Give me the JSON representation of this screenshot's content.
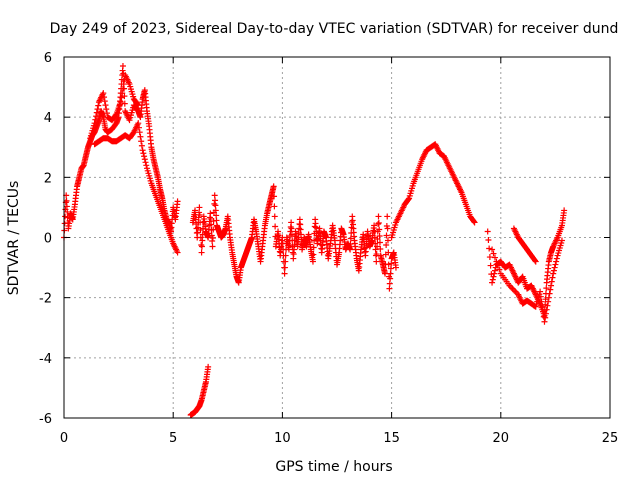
{
  "chart_data": {
    "type": "scatter",
    "title": "Day 249 of 2023, Sidereal Day-to-day VTEC variation (SDTVAR) for receiver dund",
    "xlabel": "GPS time / hours",
    "ylabel": "SDTVAR / TECUs",
    "xlim": [
      0,
      25
    ],
    "ylim": [
      -6,
      6
    ],
    "xticks": [
      0,
      5,
      10,
      15,
      20,
      25
    ],
    "yticks": [
      -6,
      -4,
      -2,
      0,
      2,
      4,
      6
    ],
    "xtick_labels": [
      "0",
      "5",
      "10",
      "15",
      "20",
      "25"
    ],
    "ytick_labels": [
      "-6",
      "-4",
      "-2",
      "0",
      "2",
      "4",
      "6"
    ],
    "grid": true,
    "marker": "+",
    "color": "#ff0000",
    "series": [
      {
        "name": "main",
        "x": [
          0.0,
          0.1,
          0.2,
          0.3,
          0.4,
          0.5,
          0.6,
          0.7,
          0.8,
          0.9,
          1.0,
          1.1,
          1.2,
          1.3,
          1.4,
          1.5,
          1.6,
          1.7,
          1.8,
          1.9,
          2.0,
          2.2,
          2.4,
          2.5,
          2.6,
          2.7,
          2.8,
          3.0,
          3.2,
          3.4,
          3.5,
          3.6,
          3.7,
          3.8,
          3.9,
          4.0,
          4.1,
          4.2,
          4.3,
          4.4,
          4.5,
          4.6,
          4.7,
          4.8,
          4.9,
          5.0,
          5.1,
          5.2
        ],
        "y": [
          0.0,
          1.4,
          0.3,
          0.8,
          0.6,
          1.1,
          1.7,
          2.0,
          2.3,
          2.4,
          2.7,
          3.0,
          3.2,
          3.4,
          3.5,
          3.7,
          3.9,
          4.2,
          4.0,
          3.6,
          3.5,
          3.6,
          3.8,
          4.0,
          4.8,
          5.7,
          4.2,
          3.9,
          4.4,
          4.2,
          4.0,
          4.6,
          4.9,
          4.2,
          3.7,
          3.0,
          2.6,
          2.3,
          2.0,
          1.6,
          1.3,
          0.9,
          0.6,
          0.5,
          0.2,
          1.0,
          0.6,
          1.2
        ]
      },
      {
        "name": "band-upper",
        "x": [
          1.2,
          1.4,
          1.6,
          1.8,
          2.0,
          2.2,
          2.4,
          2.6,
          2.8,
          3.0,
          3.2,
          3.4
        ],
        "y": [
          3.3,
          3.8,
          4.5,
          4.8,
          4.0,
          3.9,
          4.1,
          4.5,
          5.4,
          5.1,
          4.6,
          4.4
        ]
      },
      {
        "name": "band-lower",
        "x": [
          1.4,
          1.6,
          1.8,
          2.0,
          2.2,
          2.4,
          2.6,
          2.8,
          3.0,
          3.2,
          3.4,
          3.6,
          3.8,
          4.0,
          4.2,
          4.4,
          4.6,
          4.8,
          5.0,
          5.2
        ],
        "y": [
          3.1,
          3.2,
          3.3,
          3.3,
          3.2,
          3.2,
          3.3,
          3.4,
          3.3,
          3.5,
          3.8,
          2.9,
          2.3,
          1.8,
          1.4,
          1.0,
          0.6,
          0.2,
          -0.2,
          -0.5
        ]
      },
      {
        "name": "outlier",
        "x": [
          5.8,
          5.9,
          6.0,
          6.1,
          6.2,
          6.3,
          6.4,
          6.5,
          6.6
        ],
        "y": [
          -5.9,
          -5.85,
          -5.8,
          -5.7,
          -5.6,
          -5.4,
          -5.1,
          -4.8,
          -4.3
        ]
      },
      {
        "name": "mid-day",
        "x": [
          5.9,
          6.0,
          6.1,
          6.2,
          6.3,
          6.4,
          6.5,
          6.6,
          6.7,
          6.8,
          6.9,
          7.0,
          7.1,
          7.2,
          7.3,
          7.4,
          7.5,
          7.6,
          7.7,
          7.8,
          7.9,
          8.0,
          8.1,
          8.2,
          8.3,
          8.4,
          8.5,
          8.6,
          8.7,
          8.8,
          8.9,
          9.0,
          9.1,
          9.2,
          9.3,
          9.4,
          9.5,
          9.6,
          9.7,
          9.8,
          9.9,
          10.0,
          10.1,
          10.2,
          10.3,
          10.4,
          10.5,
          10.6,
          10.7,
          10.8,
          10.9,
          11.0,
          11.1,
          11.2,
          11.3,
          11.4,
          11.5,
          11.6,
          11.7,
          11.8,
          11.9,
          12.0,
          12.1,
          12.2,
          12.3,
          12.4,
          12.5,
          12.6,
          12.7,
          12.8,
          12.9,
          13.0,
          13.1,
          13.2,
          13.3,
          13.4,
          13.5,
          13.6,
          13.7,
          13.8,
          13.9,
          14.0,
          14.1,
          14.2,
          14.3,
          14.4,
          14.5,
          14.6,
          14.7,
          14.8,
          14.9,
          15.0,
          15.1,
          15.2
        ],
        "y": [
          0.5,
          0.9,
          0.0,
          1.0,
          -0.5,
          0.7,
          0.2,
          0.0,
          0.8,
          -0.3,
          1.4,
          0.4,
          0.2,
          0.0,
          0.1,
          0.3,
          0.7,
          0.0,
          -0.5,
          -0.9,
          -1.3,
          -1.5,
          -1.0,
          -0.8,
          -0.6,
          -0.4,
          -0.2,
          0.0,
          0.6,
          0.2,
          -0.3,
          -0.8,
          -0.2,
          0.4,
          0.8,
          1.1,
          1.4,
          1.7,
          -0.3,
          0.2,
          -0.6,
          0.0,
          -1.2,
          0.0,
          -0.4,
          0.5,
          -0.7,
          0.2,
          -0.3,
          0.6,
          -0.4,
          0.0,
          -0.3,
          0.1,
          -0.4,
          -0.8,
          0.6,
          -0.2,
          0.3,
          -0.5,
          0.2,
          0.0,
          -0.7,
          -0.2,
          0.4,
          -0.1,
          -0.9,
          -0.5,
          0.3,
          0.1,
          -0.4,
          -0.2,
          -0.4,
          0.7,
          -0.1,
          -0.7,
          -1.1,
          -0.4,
          0.1,
          -0.6,
          0.2,
          -0.3,
          -0.1,
          0.4,
          -0.8,
          0.7,
          -0.6,
          -0.9,
          -1.2,
          0.7,
          -1.7,
          -0.7,
          -0.5,
          -1.0
        ]
      },
      {
        "name": "afternoon",
        "x": [
          15.0,
          15.2,
          15.4,
          15.6,
          15.8,
          16.0,
          16.2,
          16.4,
          16.6,
          16.8,
          17.0,
          17.2,
          17.4,
          17.6,
          17.8,
          18.0,
          18.2,
          18.4,
          18.6,
          18.8
        ],
        "y": [
          0.0,
          0.5,
          0.8,
          1.1,
          1.3,
          1.8,
          2.2,
          2.6,
          2.9,
          3.0,
          3.1,
          2.8,
          2.7,
          2.4,
          2.1,
          1.8,
          1.5,
          1.1,
          0.7,
          0.5
        ]
      },
      {
        "name": "evening",
        "x": [
          19.4,
          19.6,
          19.8,
          20.0,
          20.2,
          20.4,
          20.6,
          20.8,
          21.0,
          21.2,
          21.4,
          21.6,
          21.8,
          22.0,
          22.1,
          22.2,
          22.3,
          22.4,
          22.6,
          22.8,
          22.9
        ],
        "y": [
          0.2,
          -1.5,
          -0.9,
          -0.8,
          -1.0,
          -0.9,
          -1.2,
          -1.5,
          -1.3,
          -1.7,
          -1.6,
          -1.9,
          -2.2,
          -2.6,
          -1.5,
          -0.8,
          -0.5,
          -0.3,
          0.0,
          0.4,
          0.9
        ]
      },
      {
        "name": "late-dips",
        "x": [
          19.6,
          20.0,
          20.4,
          20.8,
          21.0,
          21.2,
          21.4,
          21.6,
          21.8,
          22.0,
          22.2,
          22.4,
          22.6,
          22.8
        ],
        "y": [
          -0.4,
          -1.2,
          -1.6,
          -1.9,
          -2.2,
          -2.1,
          -2.2,
          -2.3,
          -1.8,
          -2.8,
          -2.0,
          -1.2,
          -0.6,
          -0.1
        ]
      },
      {
        "name": "late-spur",
        "x": [
          20.6,
          20.8,
          21.0,
          21.2,
          21.4,
          21.6
        ],
        "y": [
          0.3,
          0.0,
          -0.2,
          -0.4,
          -0.6,
          -0.8
        ]
      }
    ]
  }
}
